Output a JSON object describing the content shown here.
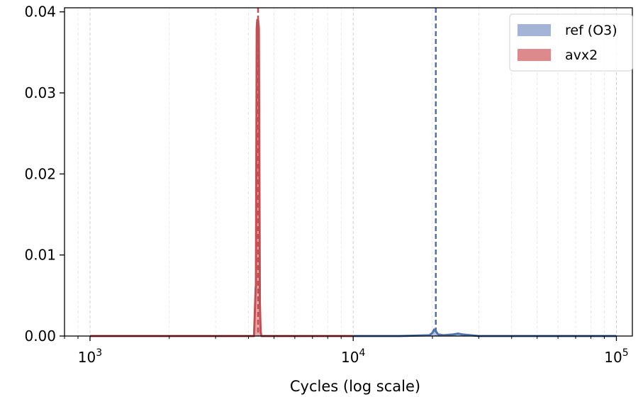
{
  "chart_data": {
    "type": "area",
    "title": "",
    "xlabel": "Cycles (log scale)",
    "ylabel": "",
    "x_scale": "log",
    "xlim": [
      800,
      115000
    ],
    "ylim": [
      0,
      0.0405
    ],
    "y_ticks": [
      0.0,
      0.01,
      0.02,
      0.03,
      0.04
    ],
    "y_tick_labels": [
      "0.00",
      "0.01",
      "0.02",
      "0.03",
      "0.04"
    ],
    "x_ticks": [
      {
        "value": 1000,
        "base": "10",
        "exp": "3"
      },
      {
        "value": 10000,
        "base": "10",
        "exp": "4"
      },
      {
        "value": 100000,
        "base": "10",
        "exp": "5"
      }
    ],
    "grid": "vertical dashed (major and minor x)",
    "legend_position": "top-right",
    "series": [
      {
        "name": "ref (O3)",
        "color": "#4c72b0",
        "fill_color": "#a3b4d6",
        "x": [
          10000,
          15000,
          19500,
          20000,
          20300,
          20600,
          21000,
          22000,
          24000,
          25000,
          26000,
          30000,
          100000
        ],
        "y": [
          0,
          0,
          0.0001,
          0.0004,
          0.0008,
          0.0006,
          0.0002,
          0.0001,
          0.0002,
          0.0003,
          0.0002,
          0,
          0
        ],
        "marker_line": 20600
      },
      {
        "name": "avx2",
        "color": "#c44e52",
        "fill_color": "#dd8a8d",
        "x": [
          1000,
          4200,
          4260,
          4270,
          4300,
          4320,
          4350,
          4380,
          4420,
          4450,
          4480,
          10000
        ],
        "y": [
          0,
          0,
          0.006,
          0.006,
          0.038,
          0.039,
          0.039,
          0.038,
          0.004,
          0.0005,
          0,
          0
        ],
        "marker_line": 4350
      }
    ]
  }
}
